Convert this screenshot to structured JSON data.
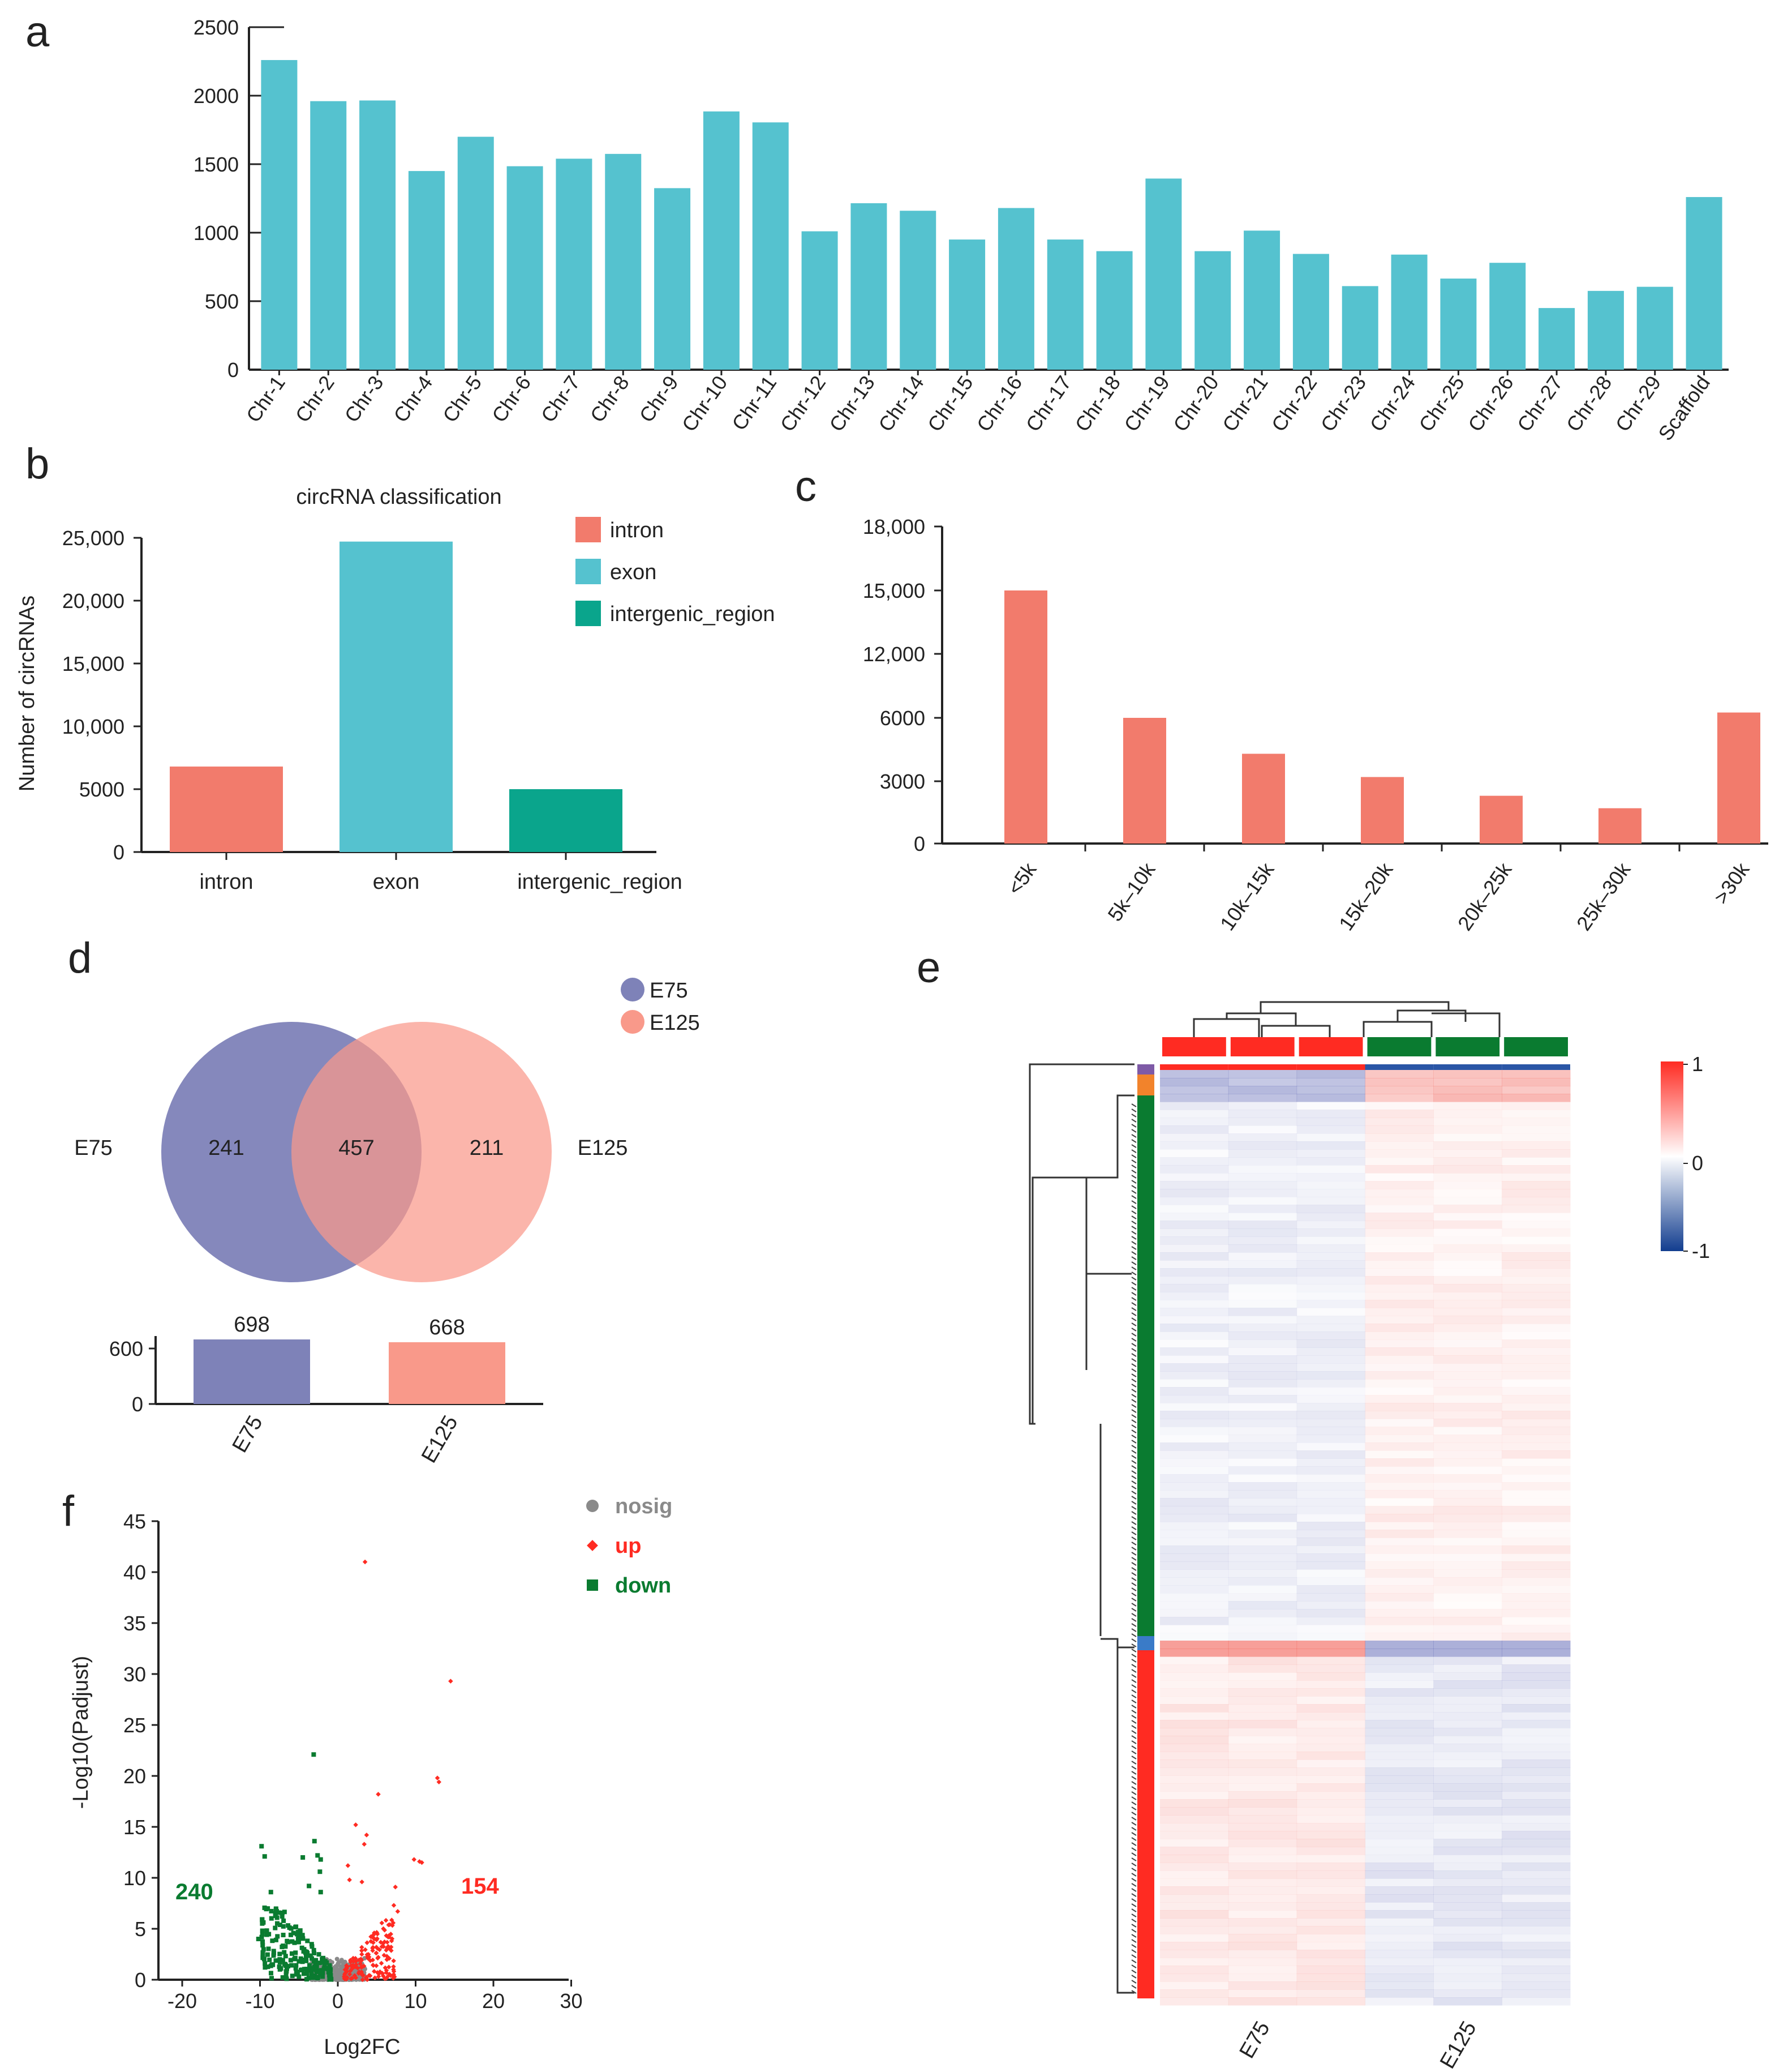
{
  "panels": {
    "a": "a",
    "b": "b",
    "c": "c",
    "d": "d",
    "e": "e",
    "f": "f"
  },
  "colors": {
    "teal": "#55c2cf",
    "salmon": "#f27b6c",
    "green": "#0aa58c",
    "venn_blue": "#7e82b8",
    "venn_pink": "#f9998a",
    "red": "#ff2b22",
    "dkgreen": "#0a7b30",
    "nosig": "#8a8a8a"
  },
  "chart_data": [
    {
      "id": "a",
      "type": "bar",
      "categories": [
        "Chr-1",
        "Chr-2",
        "Chr-3",
        "Chr-4",
        "Chr-5",
        "Chr-6",
        "Chr-7",
        "Chr-8",
        "Chr-9",
        "Chr-10",
        "Chr-11",
        "Chr-12",
        "Chr-13",
        "Chr-14",
        "Chr-15",
        "Chr-16",
        "Chr-17",
        "Chr-18",
        "Chr-19",
        "Chr-20",
        "Chr-21",
        "Chr-22",
        "Chr-23",
        "Chr-24",
        "Chr-25",
        "Chr-26",
        "Chr-27",
        "Chr-28",
        "Chr-29",
        "Scaffold"
      ],
      "values": [
        2260,
        1960,
        1965,
        1450,
        1700,
        1485,
        1540,
        1575,
        1325,
        1885,
        1805,
        1010,
        1215,
        1160,
        950,
        1180,
        950,
        865,
        1395,
        865,
        1015,
        845,
        610,
        840,
        665,
        780,
        450,
        575,
        605,
        1260
      ],
      "yticks": [
        "0",
        "500",
        "1000",
        "1500",
        "2000",
        "2500"
      ],
      "ylim": [
        0,
        2500
      ]
    },
    {
      "id": "b",
      "type": "bar",
      "title": "circRNA classification",
      "ylabel": "Number of circRNAs",
      "categories": [
        "intron",
        "exon",
        "intergenic_region"
      ],
      "values": [
        6800,
        24700,
        5000
      ],
      "yticks": [
        "0",
        "5000",
        "10,000",
        "15,000",
        "20,000",
        "25,000"
      ],
      "ylim": [
        0,
        25000
      ],
      "legend": [
        "intron",
        "exon",
        "intergenic_region"
      ]
    },
    {
      "id": "c",
      "type": "bar",
      "categories": [
        "<5k",
        "5k–10k",
        "10k–15k",
        "15k–20k",
        "20k–25k",
        "25k–30k",
        ">30k"
      ],
      "values": [
        15000,
        6000,
        4300,
        3200,
        2300,
        1700,
        6500
      ],
      "yticks": [
        "0",
        "3000",
        "6000",
        "12,000",
        "15,000",
        "18,000"
      ],
      "ylim": [
        0,
        18000
      ]
    },
    {
      "id": "d",
      "type": "venn",
      "sets": [
        "E75",
        "E125"
      ],
      "only_left": "241",
      "shared": "457",
      "only_right": "211",
      "side_left": "E75",
      "side_right": "E125",
      "bar_categories": [
        "E75",
        "E125"
      ],
      "bar_values": [
        698,
        668
      ],
      "bar_labels": [
        "698",
        "668"
      ],
      "bar_yticks": [
        "0",
        "600"
      ]
    },
    {
      "id": "e",
      "type": "heatmap",
      "columns": [
        "E75",
        "E125"
      ],
      "scale": [
        "1",
        "0",
        "-1"
      ]
    },
    {
      "id": "f",
      "type": "scatter",
      "xlabel": "Log2FC",
      "ylabel": "-Log10(Padjust)",
      "xticks": [
        "-20",
        "-10",
        "0",
        "10",
        "20",
        "30"
      ],
      "yticks": [
        "0",
        "5",
        "10",
        "15",
        "20",
        "25",
        "30",
        "35",
        "40",
        "45"
      ],
      "xlim": [
        -22,
        30
      ],
      "ylim": [
        0,
        45
      ],
      "legend": [
        "nosig",
        "up",
        "down"
      ],
      "down_count": "240",
      "up_count": "154",
      "up_points": [
        [
          3.5,
          41
        ],
        [
          14.5,
          29.3
        ],
        [
          12.8,
          19.8
        ],
        [
          13,
          19.4
        ],
        [
          5.2,
          18.2
        ],
        [
          2.3,
          15.2
        ],
        [
          3.7,
          14.2
        ],
        [
          3.4,
          13.3
        ],
        [
          9.8,
          11.8
        ],
        [
          10.5,
          11.6
        ],
        [
          10.8,
          11.5
        ],
        [
          1.5,
          9.8
        ],
        [
          1.3,
          11.2
        ],
        [
          3.1,
          9.6
        ],
        [
          7.4,
          9.1
        ],
        [
          7.2,
          7.3
        ],
        [
          7.7,
          6.7
        ]
      ],
      "down_points": [
        [
          -3.1,
          22.1
        ],
        [
          -9.8,
          13.1
        ],
        [
          -9.4,
          12.1
        ],
        [
          -3,
          13.6
        ],
        [
          -2.6,
          12.2
        ],
        [
          -2.2,
          11.8
        ],
        [
          -4.5,
          12
        ],
        [
          -8.6,
          8.6
        ],
        [
          -2.3,
          10.6
        ],
        [
          -3.7,
          9.2
        ],
        [
          -2.2,
          8.6
        ],
        [
          -10.2,
          4
        ]
      ]
    }
  ]
}
